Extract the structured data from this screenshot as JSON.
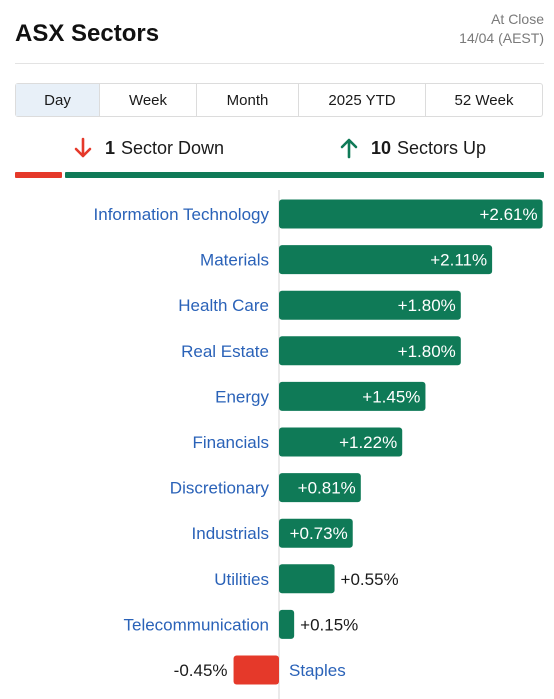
{
  "header": {
    "title": "ASX Sectors",
    "close_line1": "At Close",
    "close_line2": "14/04 (AEST)"
  },
  "tabs": [
    {
      "label": "Day",
      "active": true
    },
    {
      "label": "Week",
      "active": false
    },
    {
      "label": "Month",
      "active": false
    },
    {
      "label": "2025 YTD",
      "active": false
    },
    {
      "label": "52 Week",
      "active": false
    }
  ],
  "summary": {
    "down_count": "1",
    "down_label": "Sector Down",
    "up_count": "10",
    "up_label": "Sectors Up"
  },
  "colors": {
    "positive": "#0f7a57",
    "negative": "#e5392a",
    "label": "#2a62b8",
    "value_outside": "#1a1a1a",
    "value_inside": "#ffffff"
  },
  "chart_data": {
    "type": "bar",
    "orientation": "horizontal",
    "categories": [
      "Information Technology",
      "Materials",
      "Health Care",
      "Real Estate",
      "Energy",
      "Financials",
      "Discretionary",
      "Industrials",
      "Utilities",
      "Telecommunication",
      "Staples"
    ],
    "values": [
      2.61,
      2.11,
      1.8,
      1.8,
      1.45,
      1.22,
      0.81,
      0.73,
      0.55,
      0.15,
      -0.45
    ],
    "value_labels": [
      "+2.61%",
      "+2.11%",
      "+1.80%",
      "+1.80%",
      "+1.45%",
      "+1.22%",
      "+0.81%",
      "+0.73%",
      "+0.55%",
      "+0.15%",
      "-0.45%"
    ],
    "unit": "%"
  }
}
